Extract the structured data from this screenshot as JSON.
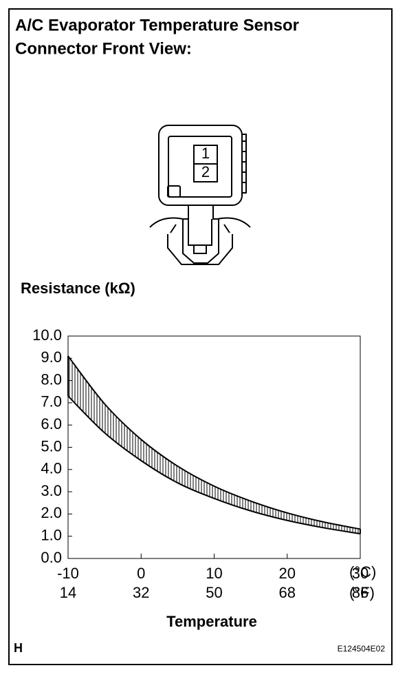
{
  "header": {
    "title_lines": [
      "A/C Evaporator Temperature Sensor",
      "Connector Front View:"
    ]
  },
  "connector": {
    "pins": [
      "1",
      "2"
    ]
  },
  "chart_data": {
    "type": "band",
    "title": "Resistance (kΩ)",
    "x_label": "Temperature",
    "x_unit_labels": [
      "(°C)",
      "(°F)"
    ],
    "x": [
      -10,
      -5,
      0,
      5,
      10,
      15,
      20,
      25,
      30
    ],
    "series": [
      {
        "color": "#000000",
        "values": [
          9.1,
          6.95,
          5.35,
          4.15,
          3.25,
          2.58,
          2.05,
          1.64,
          1.32
        ]
      },
      {
        "color": "#000000",
        "values": [
          7.3,
          5.65,
          4.4,
          3.4,
          2.7,
          2.14,
          1.71,
          1.38,
          1.11
        ]
      }
    ],
    "xlim": [
      -10,
      30
    ],
    "xticks": [
      -10,
      0,
      10,
      20,
      30
    ],
    "xticks_f": [
      14,
      32,
      50,
      68,
      86
    ],
    "ylim": [
      0,
      10
    ],
    "yticks": [
      {
        "value": 0,
        "label": "0.0"
      },
      {
        "value": 1,
        "label": "1.0"
      },
      {
        "value": 2,
        "label": "2.0"
      },
      {
        "value": 3,
        "label": "3.0"
      },
      {
        "value": 4,
        "label": "4.0"
      },
      {
        "value": 5,
        "label": "5.0"
      },
      {
        "value": 6,
        "label": "6.0"
      },
      {
        "value": 7,
        "label": "7.0"
      },
      {
        "value": 8,
        "label": "8.0"
      },
      {
        "value": 9,
        "label": "9.0"
      },
      {
        "value": 10,
        "label": "10.0"
      }
    ],
    "grid": false,
    "hatched_band": true
  },
  "footer": {
    "left": "H",
    "right": "E124504E02"
  }
}
